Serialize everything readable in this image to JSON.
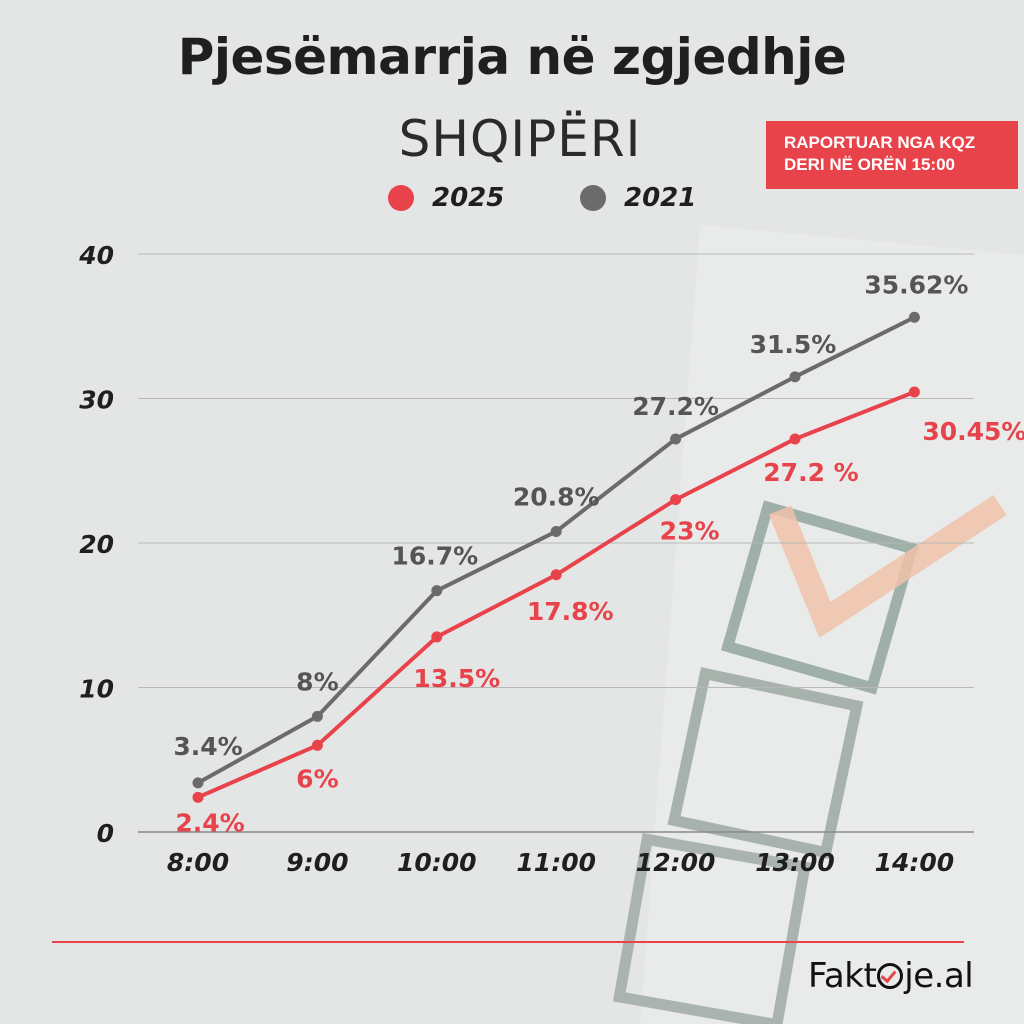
{
  "header": {
    "title": "Pjesëmarrja në zgjedhje",
    "subtitle": "SHQIPËRI",
    "badge_line1": "RAPORTUAR NGA KQZ",
    "badge_line2": "DERI NË ORËN 15:00"
  },
  "legend": [
    {
      "label": "2025",
      "color": "#e8434b"
    },
    {
      "label": "2021",
      "color": "#6b6b6b"
    }
  ],
  "logo": {
    "prefix": "Fakt",
    "suffix": "je.al",
    "icon": "checkmark-circle-icon"
  },
  "chart_data": {
    "type": "line",
    "title": "Pjesëmarrja në zgjedhje",
    "subtitle": "SHQIPËRI",
    "categories": [
      "8:00",
      "9:00",
      "10:00",
      "11:00",
      "12:00",
      "13:00",
      "14:00"
    ],
    "ylim": [
      0,
      40
    ],
    "yticks": [
      "0",
      "10",
      "20",
      "30",
      "40"
    ],
    "grid": true,
    "legend_position": "top",
    "series": [
      {
        "name": "2025",
        "color": "#e8434b",
        "values": [
          2.4,
          6,
          13.5,
          17.8,
          23,
          27.2,
          30.45
        ],
        "labels": [
          "2.4%",
          "6%",
          "13.5%",
          "17.8%",
          "23%",
          "27.2 %",
          "30.45%"
        ]
      },
      {
        "name": "2021",
        "color": "#6b6b6b",
        "values": [
          3.4,
          8,
          16.7,
          20.8,
          27.2,
          31.5,
          35.62
        ],
        "labels": [
          "3.4%",
          "8%",
          "16.7%",
          "20.8%",
          "27.2%",
          "31.5%",
          "35.62%"
        ]
      }
    ]
  }
}
